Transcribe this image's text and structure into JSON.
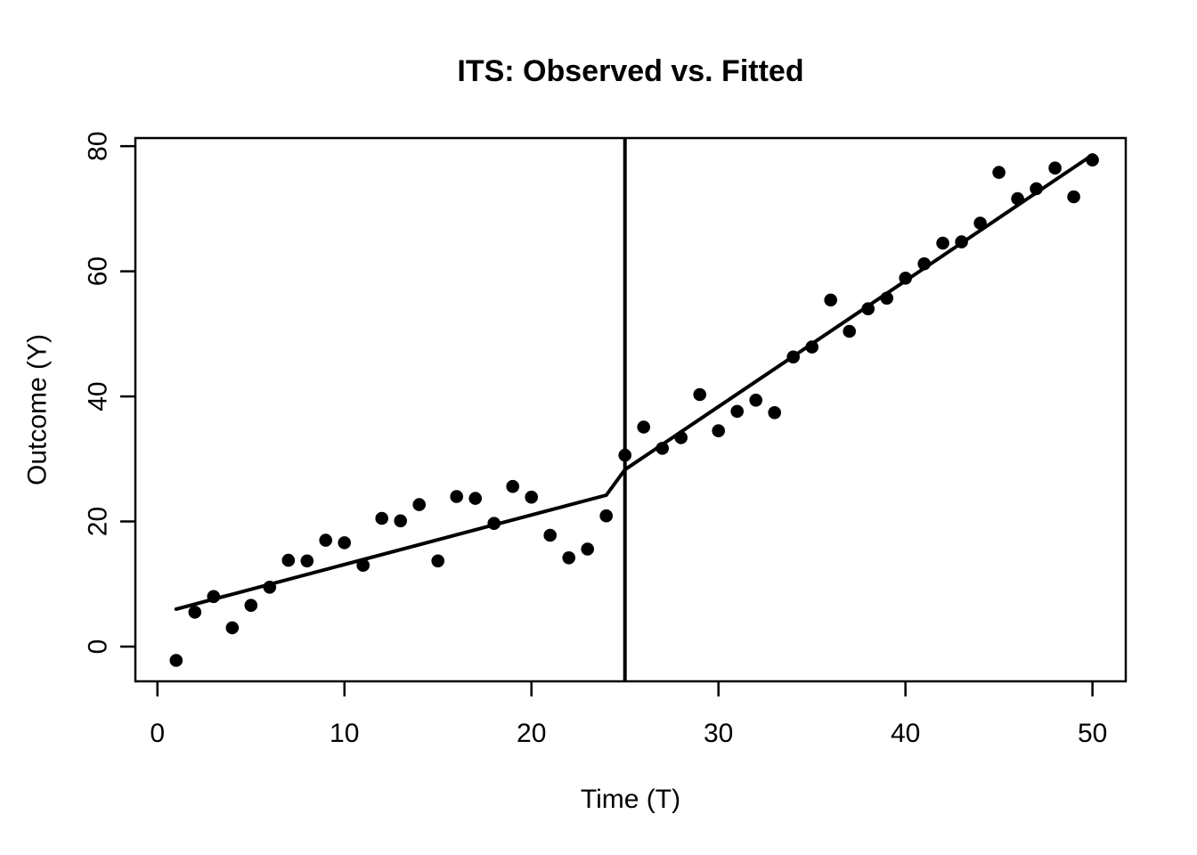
{
  "window": {
    "background_color": "#ffffff",
    "foreground_color": "#000000"
  },
  "chart_data": {
    "type": "scatter",
    "title": "ITS: Observed vs. Fitted",
    "xlabel": "Time (T)",
    "ylabel": "Outcome (Y)",
    "xlim": [
      -1.18,
      51.78
    ],
    "ylim": [
      -5.55,
      81.3
    ],
    "x_ticks": [
      0,
      10,
      20,
      30,
      40,
      50
    ],
    "y_ticks": [
      0,
      20,
      40,
      60,
      80
    ],
    "grid": false,
    "legend": "none",
    "intervention_time": 25,
    "point_color": "#000000",
    "line_color": "#000000",
    "series": [
      {
        "name": "Observed",
        "marker": "filled-circle",
        "x": [
          1,
          2,
          3,
          4,
          5,
          6,
          7,
          8,
          9,
          10,
          11,
          12,
          13,
          14,
          15,
          16,
          17,
          18,
          19,
          20,
          21,
          22,
          23,
          24,
          25,
          26,
          27,
          28,
          29,
          30,
          31,
          32,
          33,
          34,
          35,
          36,
          37,
          38,
          39,
          40,
          41,
          42,
          43,
          44,
          45,
          46,
          47,
          48,
          49,
          50
        ],
        "y": [
          -2.2,
          5.5,
          8.0,
          3.0,
          6.6,
          9.5,
          13.8,
          13.7,
          17.0,
          16.6,
          13.0,
          20.5,
          20.1,
          22.7,
          13.7,
          24.0,
          23.7,
          19.7,
          25.6,
          23.9,
          17.8,
          14.2,
          15.6,
          20.9,
          30.6,
          35.1,
          31.7,
          33.4,
          40.3,
          34.5,
          37.6,
          39.4,
          37.4,
          46.3,
          47.9,
          55.4,
          50.4,
          54.0,
          55.7,
          58.9,
          61.2,
          64.5,
          64.7,
          67.7,
          75.8,
          71.6,
          73.2,
          76.5,
          71.9,
          77.8
        ]
      },
      {
        "name": "Fitted",
        "marker": "line",
        "points": [
          [
            1,
            6.0
          ],
          [
            24,
            24.2
          ],
          [
            25,
            28.3
          ],
          [
            50,
            78.6
          ]
        ]
      }
    ]
  }
}
